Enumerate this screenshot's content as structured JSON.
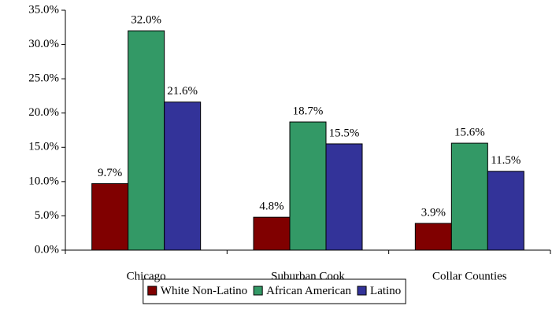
{
  "chart_data": {
    "type": "bar",
    "categories": [
      "Chicago",
      "Suburban Cook",
      "Collar Counties"
    ],
    "series": [
      {
        "name": "White Non-Latino",
        "color": "#800000",
        "values": [
          9.7,
          4.8,
          3.9
        ],
        "value_labels": [
          "9.7%",
          "4.8%",
          "3.9%"
        ]
      },
      {
        "name": "African American",
        "color": "#339966",
        "values": [
          32.0,
          18.7,
          15.6
        ],
        "value_labels": [
          "32.0%",
          "18.7%",
          "15.6%"
        ]
      },
      {
        "name": "Latino",
        "color": "#333399",
        "values": [
          21.6,
          15.5,
          11.5
        ],
        "value_labels": [
          "21.6%",
          "15.5%",
          "11.5%"
        ]
      }
    ],
    "ylim": [
      0,
      35
    ],
    "yticks": [
      {
        "value": 0,
        "label": "0.0%"
      },
      {
        "value": 5,
        "label": "5.0%"
      },
      {
        "value": 10,
        "label": "10.0%"
      },
      {
        "value": 15,
        "label": "15.0%"
      },
      {
        "value": 20,
        "label": "20.0%"
      },
      {
        "value": 25,
        "label": "25.0%"
      },
      {
        "value": 30,
        "label": "30.0%"
      },
      {
        "value": 35,
        "label": "35.0%"
      }
    ],
    "legend": "bottom"
  }
}
